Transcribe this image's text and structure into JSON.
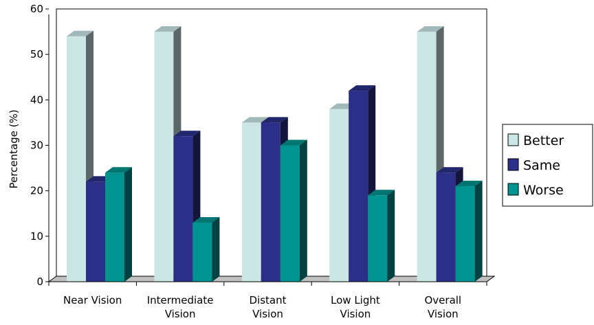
{
  "chart_data": {
    "type": "bar",
    "title": "",
    "xlabel": "",
    "ylabel": "Percentage (%)",
    "ylim": [
      0,
      60
    ],
    "yticks": [
      0,
      10,
      20,
      30,
      40,
      50,
      60
    ],
    "categories": [
      [
        "Near Vision"
      ],
      [
        "Intermediate",
        "Vision"
      ],
      [
        "Distant",
        "Vision"
      ],
      [
        "Low Light",
        "Vision"
      ],
      [
        "Overall",
        "Vision"
      ]
    ],
    "series": [
      {
        "name": "Better",
        "color": "#cce6e6",
        "values": [
          54,
          55,
          35,
          38,
          55
        ]
      },
      {
        "name": "Same",
        "color": "#2b2f87",
        "values": [
          22,
          32,
          35,
          42,
          24
        ]
      },
      {
        "name": "Worse",
        "color": "#009390",
        "values": [
          24,
          13,
          30,
          19,
          21
        ]
      }
    ],
    "grid": false,
    "legend_position": "right",
    "style": "3d-bars"
  }
}
